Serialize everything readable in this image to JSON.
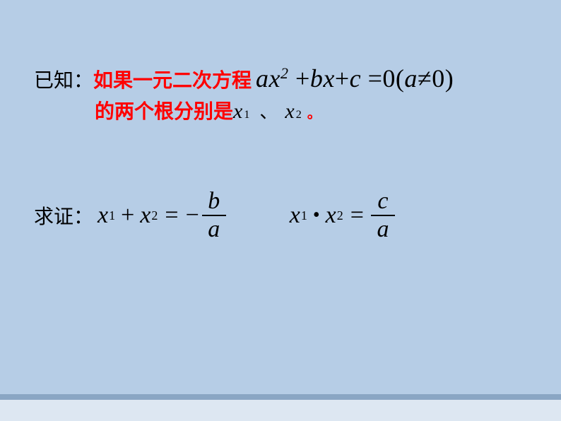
{
  "colors": {
    "slide_bg": "#b6cde6",
    "bottom_border": "#8aa6c4",
    "bottom_strip": "#dde7f2",
    "red": "#ff0000",
    "black": "#000000"
  },
  "fonts": {
    "body_family": "SimSun, 宋体, serif",
    "math_family": "Times New Roman, serif",
    "label_size_pt": 21,
    "equation_size_pt": 27,
    "formula_size_pt": 25
  },
  "line1": {
    "label_black": "已知：",
    "label_red": "如果一元二次方程",
    "equation": {
      "a": "a",
      "x": "x",
      "sq": "2",
      "plus": "+",
      "b": "b",
      "c": "c",
      "eq": "=",
      "zero": "0",
      "lpar": "(",
      "neq": "≠",
      "rpar": ")"
    }
  },
  "line2": {
    "label_red": "的两个根分别是",
    "x": "x",
    "s1": "1",
    "sep": "、",
    "s2": "2",
    "period_red": "。"
  },
  "prove": {
    "label": "求证：",
    "sum": {
      "x1": "x",
      "s1": "1",
      "plus": "+",
      "x2": "x",
      "s2": "2",
      "eq": "=",
      "neg": "−",
      "num": "b",
      "den": "a"
    },
    "prod": {
      "x1": "x",
      "s1": "1",
      "dot": "•",
      "x2": "x",
      "s2": "2",
      "eq": "=",
      "num": "c",
      "den": "a"
    }
  }
}
